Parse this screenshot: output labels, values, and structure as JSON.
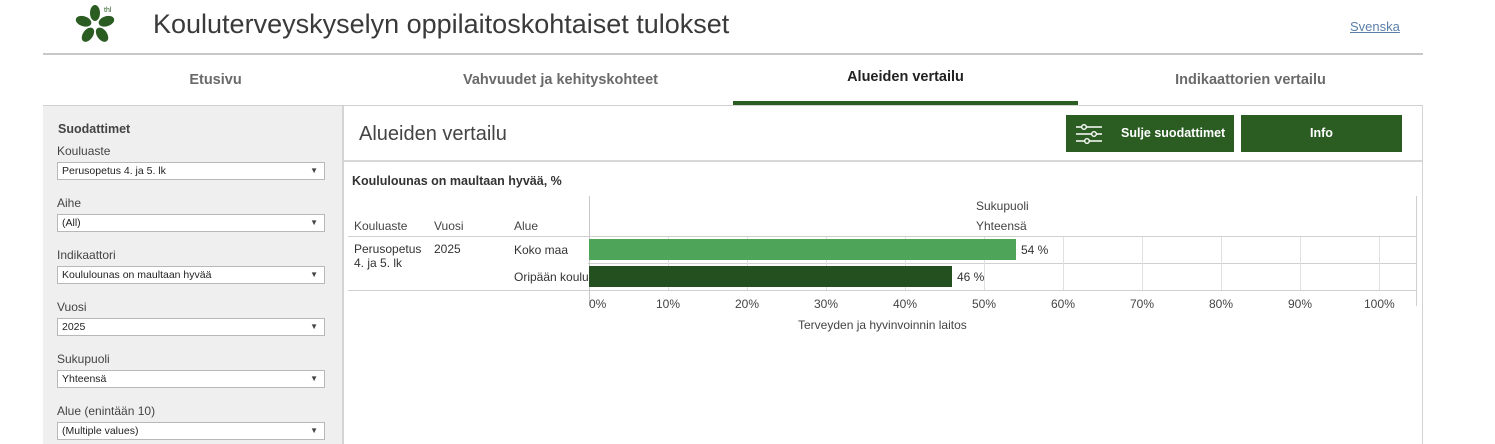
{
  "header": {
    "app_title": "Kouluterveyskyselyn oppilaitoskohtaiset tulokset",
    "logo_text": "thl",
    "lang_link": "Svenska"
  },
  "tabs": [
    {
      "label": "Etusivu",
      "active": false
    },
    {
      "label": "Vahvuudet ja kehityskohteet",
      "active": false
    },
    {
      "label": "Alueiden vertailu",
      "active": true
    },
    {
      "label": "Indikaattorien vertailu",
      "active": false
    }
  ],
  "sidebar": {
    "title": "Suodattimet",
    "filters": [
      {
        "label": "Kouluaste",
        "value": "Perusopetus 4. ja 5. lk"
      },
      {
        "label": "Aihe",
        "value": "(All)"
      },
      {
        "label": "Indikaattori",
        "value": "Koululounas on maultaan hyvää"
      },
      {
        "label": "Vuosi",
        "value": "2025"
      },
      {
        "label": "Sukupuoli",
        "value": "Yhteensä"
      },
      {
        "label": "Alue (enintään 10)",
        "value": "(Multiple values)"
      }
    ]
  },
  "main": {
    "title": "Alueiden vertailu",
    "filters_button": "Sulje suodattimet",
    "info_button": "Info"
  },
  "table": {
    "col_kouluaste": "Kouluaste",
    "col_vuosi": "Vuosi",
    "col_alue": "Alue",
    "group_label": "Sukupuoli",
    "group_value": "Yhteensä",
    "kouluaste_value_line1": "Perusopetus",
    "kouluaste_value_line2": "4. ja 5. lk",
    "vuosi_value": "2025",
    "source": "Terveyden ja hyvinvoinnin laitos"
  },
  "colors": {
    "accent": "#2b5d23",
    "bar_light": "#4ea55a",
    "bar_dark": "#24501f"
  },
  "chart_data": {
    "type": "bar",
    "orientation": "horizontal",
    "title": "Koululounas on maultaan hyvää, %",
    "categories": [
      "Koko maa",
      "Oripään koulu"
    ],
    "values": [
      54,
      46
    ],
    "value_labels": [
      "54 %",
      "46 %"
    ],
    "bar_colors": [
      "#4ea55a",
      "#24501f"
    ],
    "xlim": [
      0,
      100
    ],
    "xticks": [
      "0%",
      "10%",
      "20%",
      "30%",
      "40%",
      "50%",
      "60%",
      "70%",
      "80%",
      "90%",
      "100%"
    ],
    "grid": true
  }
}
